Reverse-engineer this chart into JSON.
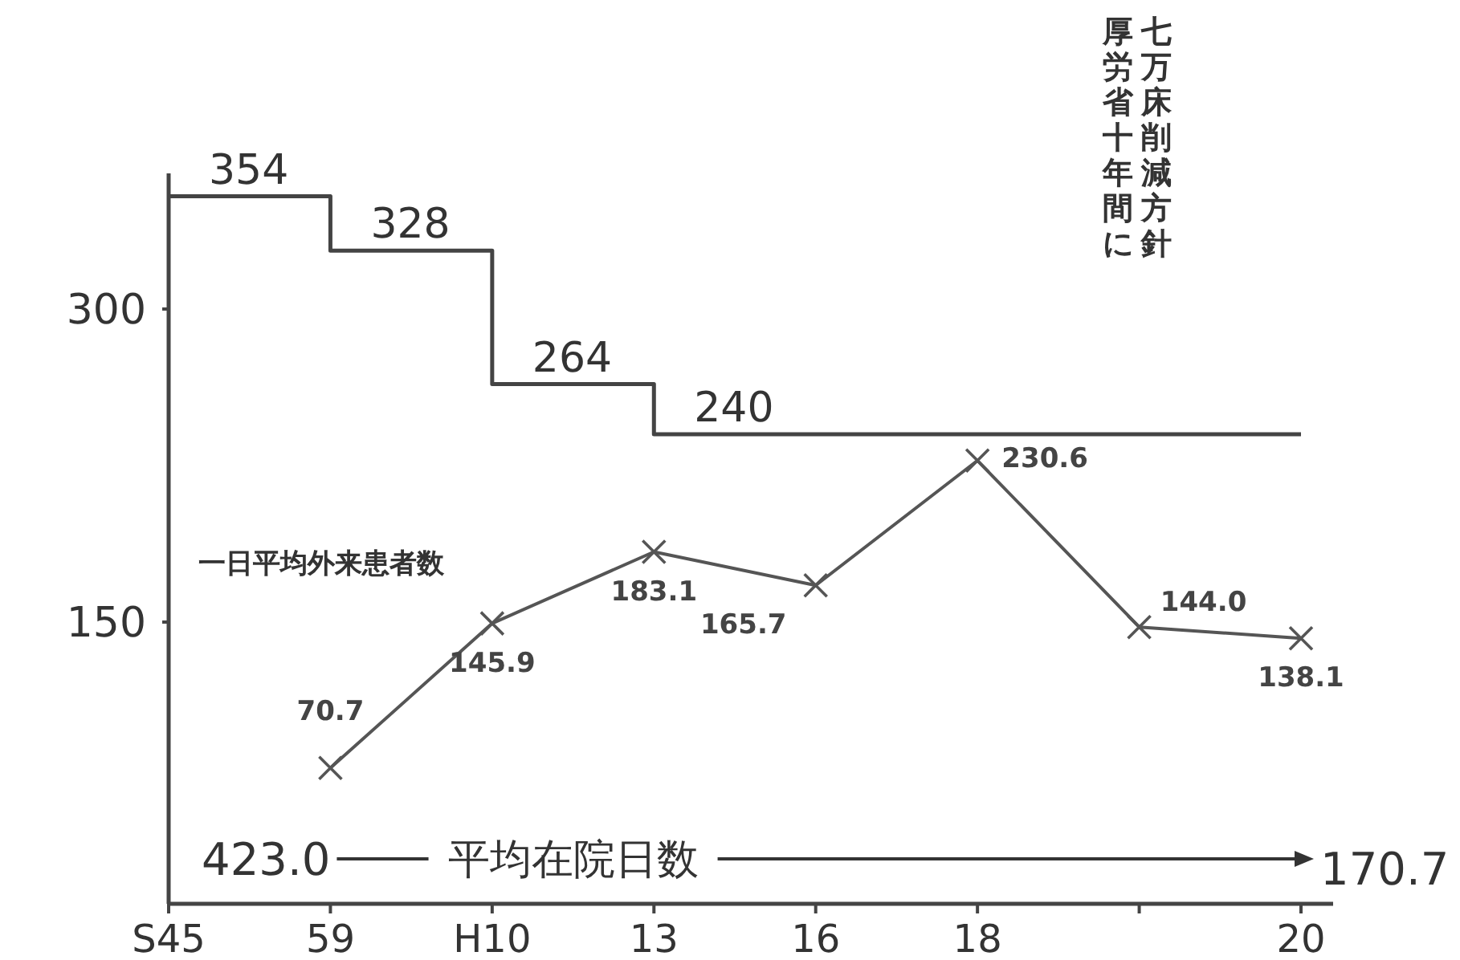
{
  "chart_data": {
    "type": "line",
    "categories": [
      "S45",
      "59",
      "H10",
      "13",
      "16",
      "18",
      null,
      "20"
    ],
    "ylim": [
      15,
      365
    ],
    "yticks": [
      150,
      300
    ],
    "y2lim": [
      0,
      380
    ],
    "series": [
      {
        "type": "step",
        "color": "#444444",
        "marker": "none",
        "values": [
          354,
          328,
          264,
          240,
          240,
          240,
          240,
          240
        ],
        "value_labels": [
          "354",
          "328",
          "264",
          "240",
          null,
          null,
          null,
          null
        ]
      },
      {
        "name": "一日平均外来患者数",
        "axis": "y2",
        "color": "#555555",
        "marker": "cross",
        "values": [
          null,
          70.7,
          145.9,
          183.1,
          165.7,
          230.6,
          144.0,
          138.1
        ],
        "value_labels": [
          null,
          "70.7",
          "145.9",
          "183.1",
          "165.7",
          "230.6",
          "144.0",
          "138.1"
        ]
      }
    ],
    "annotations": [
      "七万床削減方針",
      "厚労省十年間に",
      "423.0",
      "平均在院日数",
      "170.7"
    ]
  }
}
